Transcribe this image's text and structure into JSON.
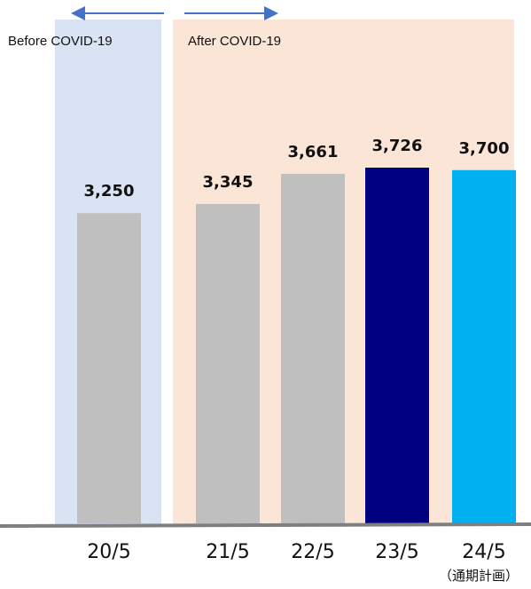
{
  "chart_data": {
    "type": "bar",
    "regions": [
      {
        "label": "Before COVID-19"
      },
      {
        "label": "After COVID-19"
      }
    ],
    "categories": [
      "20/5",
      "21/5",
      "22/5",
      "23/5",
      "24/5"
    ],
    "values": [
      3250,
      3345,
      3661,
      3726,
      3700
    ],
    "value_labels": [
      "3,250",
      "3,345",
      "3,661",
      "3,726",
      "3,700"
    ],
    "colors": [
      "#bfbfbf",
      "#bfbfbf",
      "#bfbfbf",
      "#000080",
      "#00b0f0"
    ],
    "annotation": "（通期計画）"
  }
}
